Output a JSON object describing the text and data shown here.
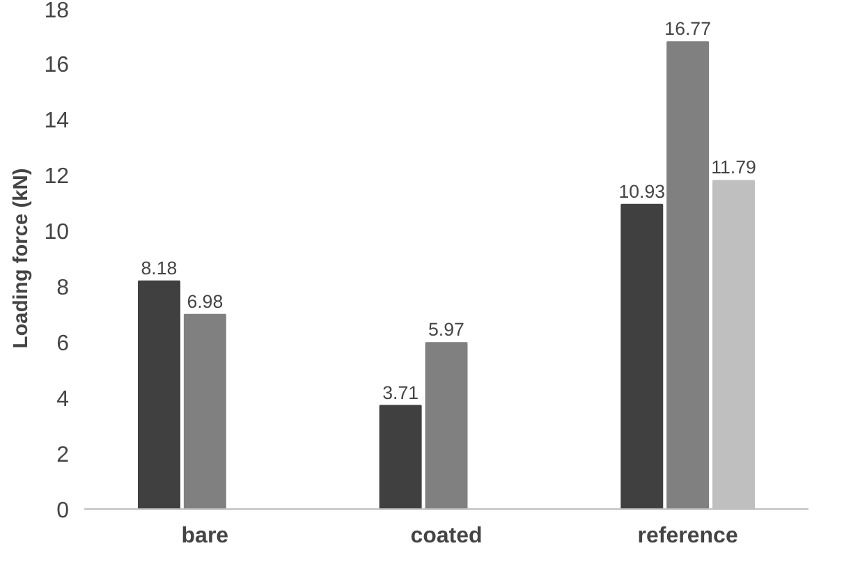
{
  "chart_data": {
    "type": "bar",
    "ylabel": "Loading force (kN)",
    "categories": [
      "bare",
      "coated",
      "reference"
    ],
    "series": [
      {
        "color": "#404040",
        "values": [
          8.18,
          3.71,
          10.93
        ]
      },
      {
        "color": "#808080",
        "values": [
          6.98,
          5.97,
          16.77
        ]
      },
      {
        "color": "#bfbfbf",
        "values": [
          null,
          null,
          11.79
        ]
      }
    ],
    "ylim": [
      0,
      18
    ],
    "yticks": [
      0,
      2,
      4,
      6,
      8,
      10,
      12,
      14,
      16,
      18
    ],
    "data_labels": true,
    "grid": false
  }
}
